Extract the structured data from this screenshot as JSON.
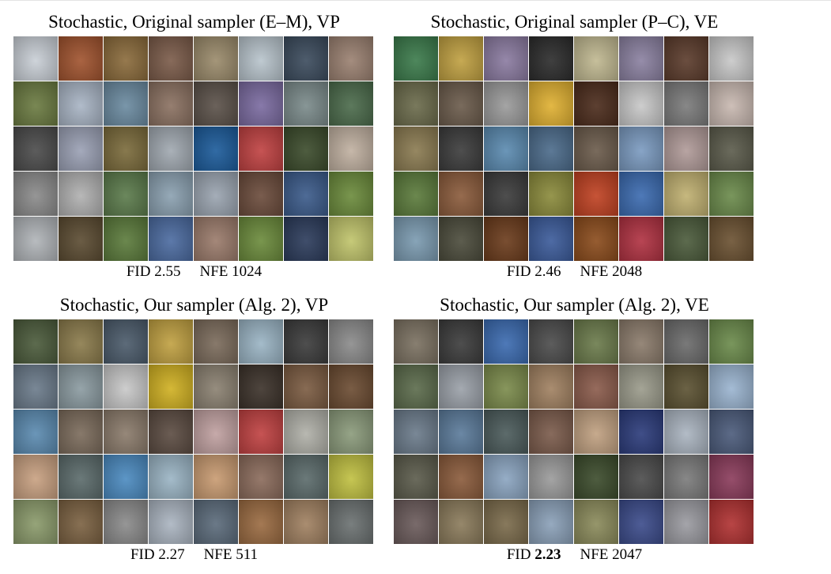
{
  "panels": [
    {
      "title": "Stochastic, Original sampler (E–M), VP",
      "fid_label": "FID",
      "fid_value": "2.55",
      "fid_bold": false,
      "nfe_label": "NFE",
      "nfe_value": "1024",
      "tiles": [
        "#c9cfd6",
        "#a0522d",
        "#8a6a3a",
        "#7a5a48",
        "#9a8a6a",
        "#b8c4cc",
        "#3a4a5c",
        "#9a8070",
        "#6a7a40",
        "#a8b4c4",
        "#6a8aa0",
        "#8a7060",
        "#5a5048",
        "#7a6aa0",
        "#7a8a8a",
        "#4a6a4a",
        "#4a4a4a",
        "#9aa0b4",
        "#7a6a3a",
        "#a0a8b0",
        "#1a5a9a",
        "#c04040",
        "#3a4a2a",
        "#c0b0a0",
        "#8a8a8a",
        "#b0b0b0",
        "#5a7a4a",
        "#8aa0b0",
        "#9aa4b0",
        "#6a4a3a",
        "#3a5a8a",
        "#6a8a3a",
        "#b0b4b8",
        "#5a4a30",
        "#5a7a3a",
        "#4a6aa0",
        "#9a7a6a",
        "#6a8a3a",
        "#2a3a5a",
        "#c0c46a"
      ]
    },
    {
      "title": "Stochastic, Original sampler (P–C), VE",
      "fid_label": "FID",
      "fid_value": "2.46",
      "fid_bold": false,
      "nfe_label": "NFE",
      "nfe_value": "2048",
      "tiles": [
        "#3a7a4a",
        "#c0a040",
        "#8a7aa0",
        "#2a2a2a",
        "#c0b890",
        "#8a80a0",
        "#5a3a2a",
        "#c8c8c8",
        "#6a6a4a",
        "#6a5a4a",
        "#9a9a9a",
        "#e0b030",
        "#4a2a1a",
        "#c8c8c8",
        "#7a7a7a",
        "#c8b8b0",
        "#8a7a50",
        "#3a3a3a",
        "#5a8ab0",
        "#4a6a8a",
        "#6a5a4a",
        "#7a9ac0",
        "#b09a98",
        "#5a5a4a",
        "#5a7a3a",
        "#8a5a3a",
        "#3a3a3a",
        "#8a8a3a",
        "#c04020",
        "#3a6ab0",
        "#c0b070",
        "#6a8a4a",
        "#7a9ab0",
        "#4a4a3a",
        "#6a3a1a",
        "#3a5a9a",
        "#8a4a1a",
        "#b03040",
        "#4a5a3a",
        "#6a5030"
      ]
    },
    {
      "title": "Stochastic, Our sampler (Alg. 2), VP",
      "fid_label": "FID",
      "fid_value": "2.27",
      "fid_bold": false,
      "nfe_label": "NFE",
      "nfe_value": "511",
      "tiles": [
        "#4a5a3a",
        "#8a7a4a",
        "#4a5a6a",
        "#c0a040",
        "#7a6a5a",
        "#9ab4c4",
        "#3a3a3a",
        "#8a8a8a",
        "#6a7a8a",
        "#8a9aa0",
        "#c8c8c8",
        "#d0b020",
        "#8a8070",
        "#3a3028",
        "#7a5a40",
        "#6a4a30",
        "#5a8ab0",
        "#7a6a5a",
        "#8a7a6a",
        "#5a4a40",
        "#c0a0a0",
        "#c04040",
        "#b0b0a8",
        "#8a9a7a",
        "#c8a080",
        "#5a6a6a",
        "#4a8ac0",
        "#9ab4c4",
        "#c89a70",
        "#8a6a5a",
        "#5a6a6a",
        "#c0c040",
        "#8a9a6a",
        "#7a6040",
        "#8a8a8a",
        "#aab4c0",
        "#5a6a7a",
        "#9a6a40",
        "#a08060",
        "#6a7070"
      ]
    },
    {
      "title": "Stochastic, Our sampler (Alg. 2), VE",
      "fid_label": "FID",
      "fid_value": "2.23",
      "fid_bold": true,
      "nfe_label": "NFE",
      "nfe_value": "2047",
      "tiles": [
        "#7a7060",
        "#3a3a3a",
        "#3a6ab0",
        "#4a4a4a",
        "#6a7a4a",
        "#8a7a6a",
        "#6a6a6a",
        "#6a8a4a",
        "#5a6a4a",
        "#9aa0a8",
        "#7a8a4a",
        "#a08060",
        "#8a5a4a",
        "#9a9a8a",
        "#5a5030",
        "#9ab4d0",
        "#6a7a8a",
        "#5a7a9a",
        "#4a5a5a",
        "#7a5a4a",
        "#c0a080",
        "#2a3a7a",
        "#aab4c0",
        "#4a5a7a",
        "#5a5a4a",
        "#8a5a3a",
        "#8aa4c0",
        "#9a9a9a",
        "#3a4a2a",
        "#4a4a4a",
        "#7a7a7a",
        "#8a3a5a",
        "#6a5a5a",
        "#8a7a5a",
        "#7a6a4a",
        "#8aa0b8",
        "#8a8a5a",
        "#3a4a8a",
        "#9a9aa0",
        "#b03030"
      ]
    }
  ]
}
